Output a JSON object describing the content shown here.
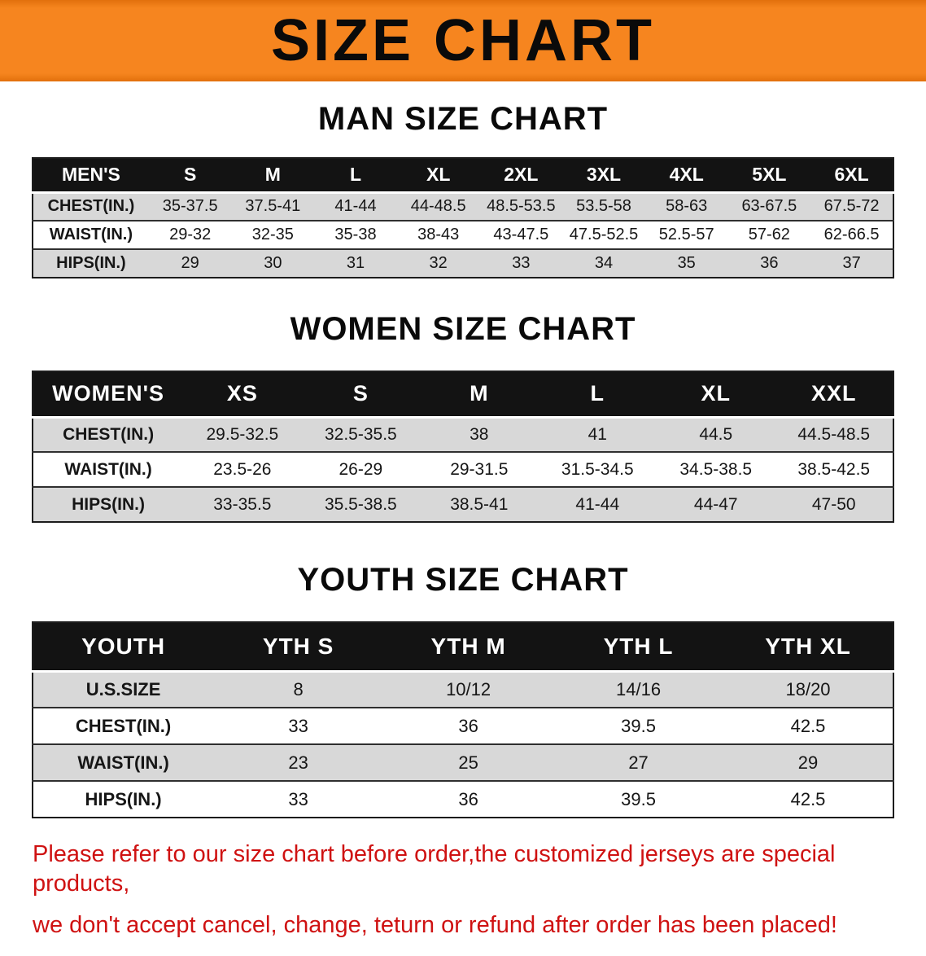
{
  "banner": {
    "title": "SIZE CHART",
    "background": "#f6851f",
    "text_color": "#0a0a0a"
  },
  "chart_data": [
    {
      "type": "table",
      "name": "men-size-table",
      "title": "MAN SIZE CHART",
      "columns": [
        "MEN'S",
        "S",
        "M",
        "L",
        "XL",
        "2XL",
        "3XL",
        "4XL",
        "5XL",
        "6XL"
      ],
      "rows": [
        [
          "CHEST(IN.)",
          "35-37.5",
          "37.5-41",
          "41-44",
          "44-48.5",
          "48.5-53.5",
          "53.5-58",
          "58-63",
          "63-67.5",
          "67.5-72"
        ],
        [
          "WAIST(IN.)",
          "29-32",
          "32-35",
          "35-38",
          "38-43",
          "43-47.5",
          "47.5-52.5",
          "52.5-57",
          "57-62",
          "62-66.5"
        ],
        [
          "HIPS(IN.)",
          "29",
          "30",
          "31",
          "32",
          "33",
          "34",
          "35",
          "36",
          "37"
        ]
      ]
    },
    {
      "type": "table",
      "name": "women-size-table",
      "title": "WOMEN SIZE CHART",
      "columns": [
        "WOMEN'S",
        "XS",
        "S",
        "M",
        "L",
        "XL",
        "XXL"
      ],
      "rows": [
        [
          "CHEST(IN.)",
          "29.5-32.5",
          "32.5-35.5",
          "38",
          "41",
          "44.5",
          "44.5-48.5"
        ],
        [
          "WAIST(IN.)",
          "23.5-26",
          "26-29",
          "29-31.5",
          "31.5-34.5",
          "34.5-38.5",
          "38.5-42.5"
        ],
        [
          "HIPS(IN.)",
          "33-35.5",
          "35.5-38.5",
          "38.5-41",
          "41-44",
          "44-47",
          "47-50"
        ]
      ]
    },
    {
      "type": "table",
      "name": "youth-size-table",
      "title": "YOUTH SIZE CHART",
      "columns": [
        "YOUTH",
        "YTH S",
        "YTH M",
        "YTH L",
        "YTH XL"
      ],
      "rows": [
        [
          "U.S.SIZE",
          "8",
          "10/12",
          "14/16",
          "18/20"
        ],
        [
          "CHEST(IN.)",
          "33",
          "36",
          "39.5",
          "42.5"
        ],
        [
          "WAIST(IN.)",
          "23",
          "25",
          "27",
          "29"
        ],
        [
          "HIPS(IN.)",
          "33",
          "36",
          "39.5",
          "42.5"
        ]
      ]
    }
  ],
  "footer": {
    "lines": [
      "Please refer to our size chart before order,the customized jerseys are special products,",
      "we don't accept cancel, change, teturn or refund after order has been placed!"
    ],
    "color": "#cf1212"
  }
}
